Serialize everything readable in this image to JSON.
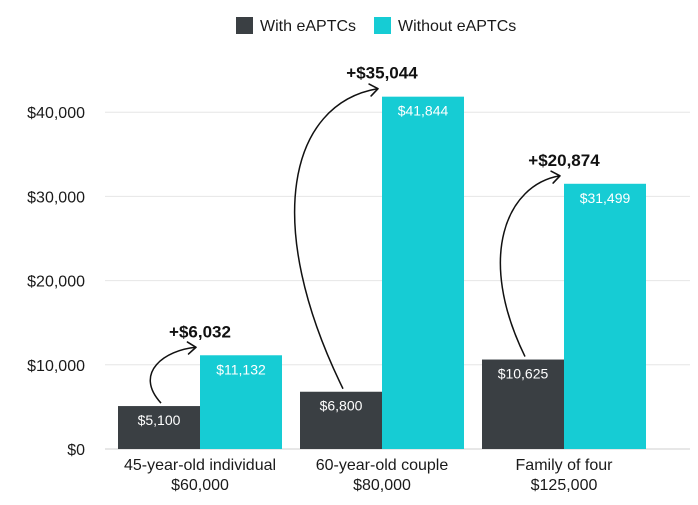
{
  "chart_data": {
    "type": "bar",
    "categories": [
      [
        "45-year-old individual",
        "$60,000"
      ],
      [
        "60-year-old couple",
        "$80,000"
      ],
      [
        "Family of four",
        "$125,000"
      ]
    ],
    "series": [
      {
        "name": "With eAPTCs",
        "color": "#3a3f43",
        "values": [
          5100,
          6800,
          10625
        ],
        "value_labels": [
          "$5,100",
          "$6,800",
          "$10,625"
        ]
      },
      {
        "name": "Without eAPTCs",
        "color": "#16ccd4",
        "values": [
          11132,
          41844,
          31499
        ],
        "value_labels": [
          "$11,132",
          "$41,844",
          "$31,499"
        ]
      }
    ],
    "differences": [
      "+$6,032",
      "+$35,044",
      "+$20,874"
    ],
    "y_ticks": [
      0,
      10000,
      20000,
      30000,
      40000
    ],
    "y_tick_labels": [
      "$0",
      "$10,000",
      "$20,000",
      "$30,000",
      "$40,000"
    ],
    "ylim": [
      0,
      45000
    ],
    "grid": true,
    "legend_position": "top-center",
    "title": "",
    "xlabel": "",
    "ylabel": ""
  }
}
